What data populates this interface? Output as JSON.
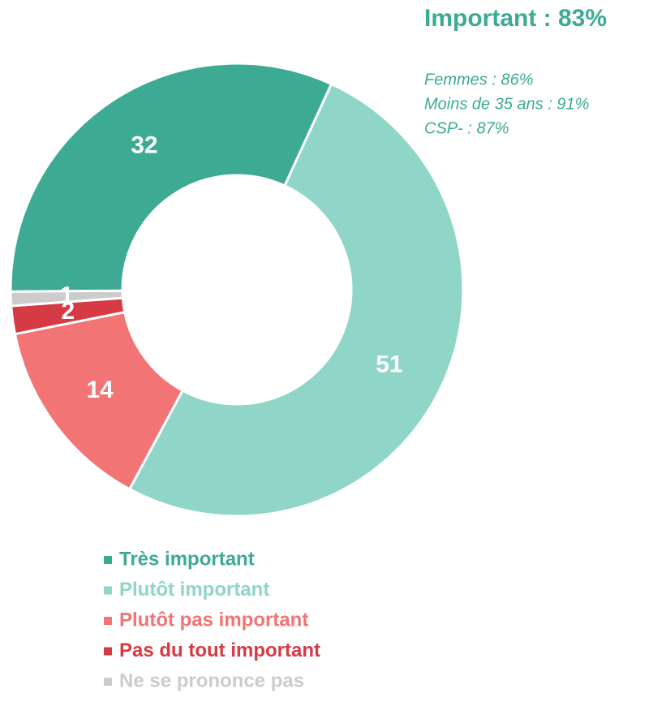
{
  "chart_data": {
    "type": "donut",
    "title": "Important : 83%",
    "annotations": [
      "Femmes : 86%",
      "Moins de 35 ans : 91%",
      "CSP- : 87%"
    ],
    "categories": [
      "Très important",
      "Plutôt important",
      "Plutôt pas important",
      "Pas du tout important",
      "Ne se prononce pas"
    ],
    "values": [
      32,
      51,
      14,
      2,
      1
    ],
    "colors": [
      "#3daa94",
      "#8fd6c8",
      "#f27474",
      "#d63b45",
      "#cccccc"
    ],
    "legend": "bottom"
  }
}
